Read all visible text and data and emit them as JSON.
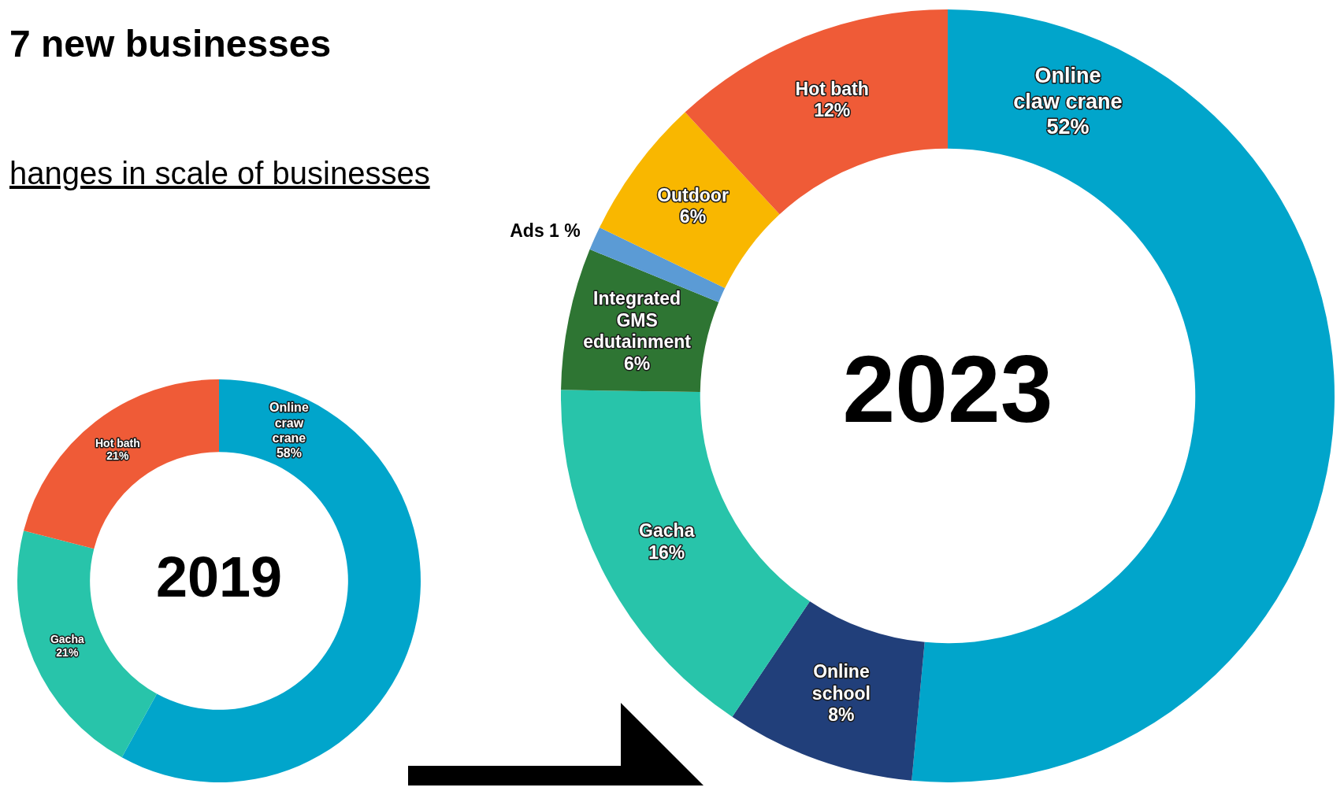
{
  "chart_data": [
    {
      "type": "donut",
      "title": "7 new businesses",
      "subtitle": "hanges in scale of businesses",
      "annotations": [
        "2019"
      ],
      "categories": [
        "Online craw crane",
        "Gacha",
        "Hot bath"
      ],
      "values": [
        58,
        21,
        21
      ],
      "value_labels": [
        "58%",
        "21%",
        "21%"
      ],
      "colors": [
        "#01a5cb",
        "#28c4aa",
        "#ef5b37"
      ],
      "legend": false
    },
    {
      "type": "donut",
      "annotations": [
        "2023"
      ],
      "categories": [
        "Online claw crane",
        "Online school",
        "Gacha",
        "Integrated GMS edutainment",
        "Ads",
        "Outdoor",
        "Hot bath"
      ],
      "values": [
        52,
        8,
        16,
        6,
        1,
        6,
        12
      ],
      "value_labels": [
        "52%",
        "8%",
        "16%",
        "6%",
        "1 %",
        "6%",
        "12%"
      ],
      "colors": [
        "#01a5cb",
        "#213f7a",
        "#28c4aa",
        "#2e7533",
        "#5b9bd5",
        "#f9b700",
        "#ef5b37"
      ],
      "legend": false
    }
  ]
}
